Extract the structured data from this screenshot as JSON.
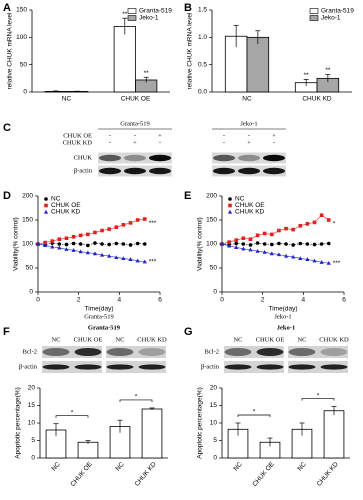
{
  "panel_labels": [
    "A",
    "B",
    "C",
    "D",
    "E",
    "F",
    "G"
  ],
  "chart_data": [
    {
      "type": "bar",
      "ylabel": "relative CHUK mRNA level",
      "categories": [
        "NC",
        "CHUK OE"
      ],
      "series": [
        {
          "name": "Granta-519",
          "color": "#ffffff",
          "values": [
            1,
            120
          ],
          "errors": [
            1,
            15
          ],
          "significance": [
            null,
            "**"
          ]
        },
        {
          "name": "Jeko-1",
          "color": "#a6a6a6",
          "values": [
            1,
            22
          ],
          "errors": [
            0.5,
            5
          ],
          "significance": [
            null,
            "**"
          ]
        }
      ],
      "ylim": [
        0,
        150
      ],
      "yticks": [
        0,
        50,
        100,
        150
      ],
      "legend": "top-right"
    },
    {
      "type": "bar",
      "ylabel": "relative CHUK mRNA level",
      "categories": [
        "NC",
        "CHUK KD"
      ],
      "series": [
        {
          "name": "Granta-519",
          "color": "#ffffff",
          "values": [
            1.02,
            0.17
          ],
          "errors": [
            0.2,
            0.06
          ],
          "significance": [
            null,
            "**"
          ]
        },
        {
          "name": "Jeko-1",
          "color": "#a6a6a6",
          "values": [
            1.0,
            0.25
          ],
          "errors": [
            0.12,
            0.07
          ],
          "significance": [
            null,
            "**"
          ]
        }
      ],
      "ylim": [
        0,
        1.5
      ],
      "yticks": [
        {
          "value": 0,
          "label": "0.0"
        },
        0.5,
        {
          "value": 1,
          "label": "1.0"
        },
        1.5
      ],
      "legend": "top-right"
    },
    {
      "type": "line",
      "ylabel": "Viability(% control)",
      "xlabel": "Time(day)",
      "subtitle": "Granta-519",
      "x": [
        0,
        0.35,
        0.7,
        1.05,
        1.4,
        1.75,
        2.1,
        2.45,
        2.8,
        3.15,
        3.5,
        3.85,
        4.2,
        4.55,
        4.9,
        5.25
      ],
      "series": [
        {
          "name": "NC",
          "color": "#000000",
          "marker": "circle",
          "values": [
            100,
            98,
            102,
            100,
            99,
            101,
            100,
            97,
            102,
            100,
            99,
            101,
            100,
            98,
            101,
            100
          ]
        },
        {
          "name": "CHUK OE",
          "color": "#e3201b",
          "marker": "square",
          "values": [
            100,
            103,
            106,
            110,
            112,
            115,
            118,
            120,
            124,
            128,
            131,
            135,
            140,
            144,
            150,
            152
          ],
          "significance": "***"
        },
        {
          "name": "CHUK KD",
          "color": "#2222cc",
          "marker": "triangle",
          "values": [
            100,
            97,
            94,
            92,
            89,
            87,
            84,
            82,
            80,
            77,
            75,
            72,
            70,
            68,
            65,
            63
          ],
          "significance": "***"
        }
      ],
      "xlim": [
        0,
        6
      ],
      "xticks": [
        0,
        2,
        4,
        6
      ],
      "ylim": [
        0,
        200
      ],
      "yticks": [
        0,
        50,
        100,
        150,
        200
      ],
      "legend": "top-left"
    },
    {
      "type": "line",
      "ylabel": "Viability(% control)",
      "xlabel": "Time(day)",
      "subtitle": "Jeko-1",
      "x": [
        0,
        0.35,
        0.7,
        1.05,
        1.4,
        1.75,
        2.1,
        2.45,
        2.8,
        3.15,
        3.5,
        3.85,
        4.2,
        4.55,
        4.9,
        5.25
      ],
      "series": [
        {
          "name": "NC",
          "color": "#000000",
          "marker": "circle",
          "values": [
            100,
            99,
            101,
            100,
            98,
            102,
            100,
            99,
            101,
            100,
            98,
            101,
            100,
            99,
            100,
            101
          ]
        },
        {
          "name": "CHUK OE",
          "color": "#e3201b",
          "marker": "square",
          "values": [
            100,
            104,
            108,
            112,
            110,
            118,
            122,
            120,
            128,
            132,
            130,
            138,
            142,
            145,
            160,
            150
          ],
          "significance": "*"
        },
        {
          "name": "CHUK KD",
          "color": "#2222cc",
          "marker": "triangle",
          "values": [
            100,
            96,
            93,
            90,
            88,
            85,
            83,
            80,
            78,
            75,
            73,
            70,
            68,
            65,
            62,
            60
          ],
          "significance": "***"
        }
      ],
      "xlim": [
        0,
        6
      ],
      "xticks": [
        0,
        2,
        4,
        6
      ],
      "ylim": [
        0,
        200
      ],
      "yticks": [
        0,
        50,
        100,
        150,
        200
      ],
      "legend": "top-left"
    },
    {
      "type": "bar",
      "ylabel": "Apoptotic percentage(%)",
      "categories": [
        "NC",
        "CHUK OE",
        "NC",
        "CHUK KD"
      ],
      "values": [
        8,
        4.5,
        9,
        14
      ],
      "errors": [
        1.8,
        0.5,
        1.8,
        0.3
      ],
      "color": "#ffffff",
      "brackets": [
        "*",
        "*"
      ],
      "ylim": [
        0,
        20
      ],
      "yticks": [
        0,
        5,
        10,
        15,
        20
      ]
    },
    {
      "type": "bar",
      "ylabel": "Apoptotic percentage(%)",
      "categories": [
        "NC",
        "CHUK OE",
        "NC",
        "CHUK KD"
      ],
      "values": [
        8.2,
        4.5,
        8.2,
        13.5
      ],
      "errors": [
        1.8,
        1.2,
        1.8,
        1.2
      ],
      "color": "#ffffff",
      "brackets": [
        "*",
        "*"
      ],
      "ylim": [
        0,
        20
      ],
      "yticks": [
        0,
        5,
        10,
        15,
        20
      ]
    }
  ],
  "blot_c": {
    "groups": [
      "Granta-519",
      "Jeko-1"
    ],
    "rows": [
      {
        "label": "CHUK OE",
        "signs": [
          "-",
          "-",
          "+",
          "-",
          "-",
          "+"
        ]
      },
      {
        "label": "CHUK KD",
        "signs": [
          "-",
          "+",
          "-",
          "-",
          "+",
          "-"
        ]
      }
    ],
    "bands": [
      "CHUK",
      "β-actin"
    ]
  },
  "blot_f": {
    "title": "Granta-519",
    "lanes": [
      "NC",
      "CHUK OE",
      "NC",
      "CHUK KD"
    ],
    "bands": [
      "Bcl-2",
      "β-actin"
    ]
  },
  "blot_g": {
    "title": "Jeko-1",
    "lanes": [
      "NC",
      "CHUK OE",
      "NC",
      "CHUK KD"
    ],
    "bands": [
      "Bcl-2",
      "β-actin"
    ]
  }
}
